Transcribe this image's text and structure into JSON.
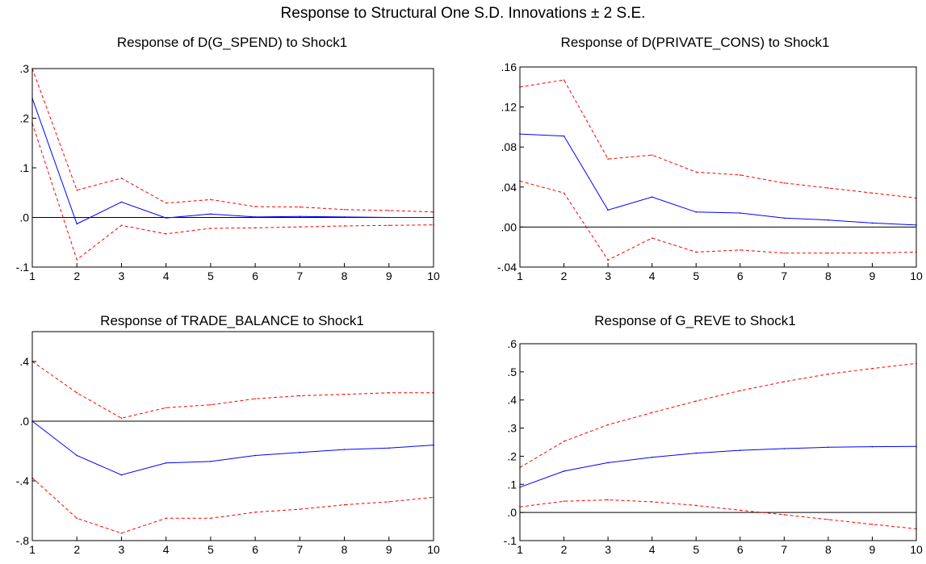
{
  "title": "Response to Structural One S.D. Innovations ± 2 S.E.",
  "colors": {
    "response": "#0000ff",
    "bands": "#ff0000",
    "zero_line": "#000000"
  },
  "chart_data": [
    {
      "type": "line",
      "title": "Response of D(G_SPEND) to Shock1",
      "x": [
        1,
        2,
        3,
        4,
        5,
        6,
        7,
        8,
        9,
        10
      ],
      "xticklabels": [
        "1",
        "2",
        "3",
        "4",
        "5",
        "6",
        "7",
        "8",
        "9",
        "10"
      ],
      "ylim": [
        -0.1,
        0.3
      ],
      "yticks": [
        -0.1,
        0.0,
        0.1,
        0.2,
        0.3
      ],
      "yticklabels": [
        "-.1",
        ".0",
        ".1",
        ".2",
        ".3"
      ],
      "series": [
        {
          "role": "response",
          "values": [
            0.24,
            -0.013,
            0.031,
            -0.001,
            0.007,
            0.001,
            0.002,
            0.001,
            0.0,
            0.0
          ]
        },
        {
          "role": "upper",
          "values": [
            0.3,
            0.055,
            0.079,
            0.029,
            0.036,
            0.022,
            0.021,
            0.016,
            0.014,
            0.011
          ]
        },
        {
          "role": "lower",
          "values": [
            0.19,
            -0.085,
            -0.016,
            -0.033,
            -0.022,
            -0.021,
            -0.019,
            -0.017,
            -0.016,
            -0.015
          ]
        }
      ]
    },
    {
      "type": "line",
      "title": "Response of D(PRIVATE_CONS) to Shock1",
      "x": [
        1,
        2,
        3,
        4,
        5,
        6,
        7,
        8,
        9,
        10
      ],
      "xticklabels": [
        "1",
        "2",
        "3",
        "4",
        "5",
        "6",
        "7",
        "8",
        "9",
        "10"
      ],
      "ylim": [
        -0.04,
        0.16
      ],
      "yticks": [
        -0.04,
        0.0,
        0.04,
        0.08,
        0.12,
        0.16
      ],
      "yticklabels": [
        "-.04",
        ".00",
        ".04",
        ".08",
        ".12",
        ".16"
      ],
      "series": [
        {
          "role": "response",
          "values": [
            0.093,
            0.091,
            0.017,
            0.03,
            0.015,
            0.014,
            0.009,
            0.007,
            0.004,
            0.002
          ]
        },
        {
          "role": "upper",
          "values": [
            0.14,
            0.147,
            0.068,
            0.072,
            0.055,
            0.052,
            0.044,
            0.039,
            0.034,
            0.029
          ]
        },
        {
          "role": "lower",
          "values": [
            0.046,
            0.034,
            -0.033,
            -0.011,
            -0.025,
            -0.023,
            -0.026,
            -0.026,
            -0.026,
            -0.025
          ]
        }
      ]
    },
    {
      "type": "line",
      "title": "Response of TRADE_BALANCE to Shock1",
      "x": [
        1,
        2,
        3,
        4,
        5,
        6,
        7,
        8,
        9,
        10
      ],
      "xticklabels": [
        "1",
        "2",
        "3",
        "4",
        "5",
        "6",
        "7",
        "8",
        "9",
        "10"
      ],
      "ylim": [
        -0.8,
        0.6
      ],
      "yticks": [
        -0.8,
        -0.4,
        0.0,
        0.4
      ],
      "yticklabels": [
        "-.8",
        "-.4",
        ".0",
        ".4"
      ],
      "series": [
        {
          "role": "response",
          "values": [
            0.0,
            -0.23,
            -0.36,
            -0.28,
            -0.27,
            -0.23,
            -0.21,
            -0.19,
            -0.18,
            -0.16
          ]
        },
        {
          "role": "upper",
          "values": [
            0.4,
            0.19,
            0.02,
            0.09,
            0.11,
            0.15,
            0.17,
            0.18,
            0.19,
            0.19
          ]
        },
        {
          "role": "lower",
          "values": [
            -0.38,
            -0.65,
            -0.75,
            -0.65,
            -0.65,
            -0.61,
            -0.59,
            -0.56,
            -0.54,
            -0.51
          ]
        }
      ]
    },
    {
      "type": "line",
      "title": "Response of G_REVE to Shock1",
      "x": [
        1,
        2,
        3,
        4,
        5,
        6,
        7,
        8,
        9,
        10
      ],
      "xticklabels": [
        "1",
        "2",
        "3",
        "4",
        "5",
        "6",
        "7",
        "8",
        "9",
        "10"
      ],
      "ylim": [
        -0.1,
        0.6
      ],
      "yticks": [
        -0.1,
        0.0,
        0.1,
        0.2,
        0.3,
        0.4,
        0.5,
        0.6
      ],
      "yticklabels": [
        "-.1",
        ".0",
        ".1",
        ".2",
        ".3",
        ".4",
        ".5",
        ".6"
      ],
      "series": [
        {
          "role": "response",
          "values": [
            0.09,
            0.147,
            0.177,
            0.196,
            0.211,
            0.221,
            0.227,
            0.232,
            0.234,
            0.235
          ]
        },
        {
          "role": "upper",
          "values": [
            0.16,
            0.253,
            0.312,
            0.355,
            0.396,
            0.433,
            0.465,
            0.492,
            0.512,
            0.53
          ]
        },
        {
          "role": "lower",
          "values": [
            0.02,
            0.04,
            0.045,
            0.038,
            0.025,
            0.008,
            -0.008,
            -0.025,
            -0.042,
            -0.058
          ]
        }
      ]
    }
  ]
}
